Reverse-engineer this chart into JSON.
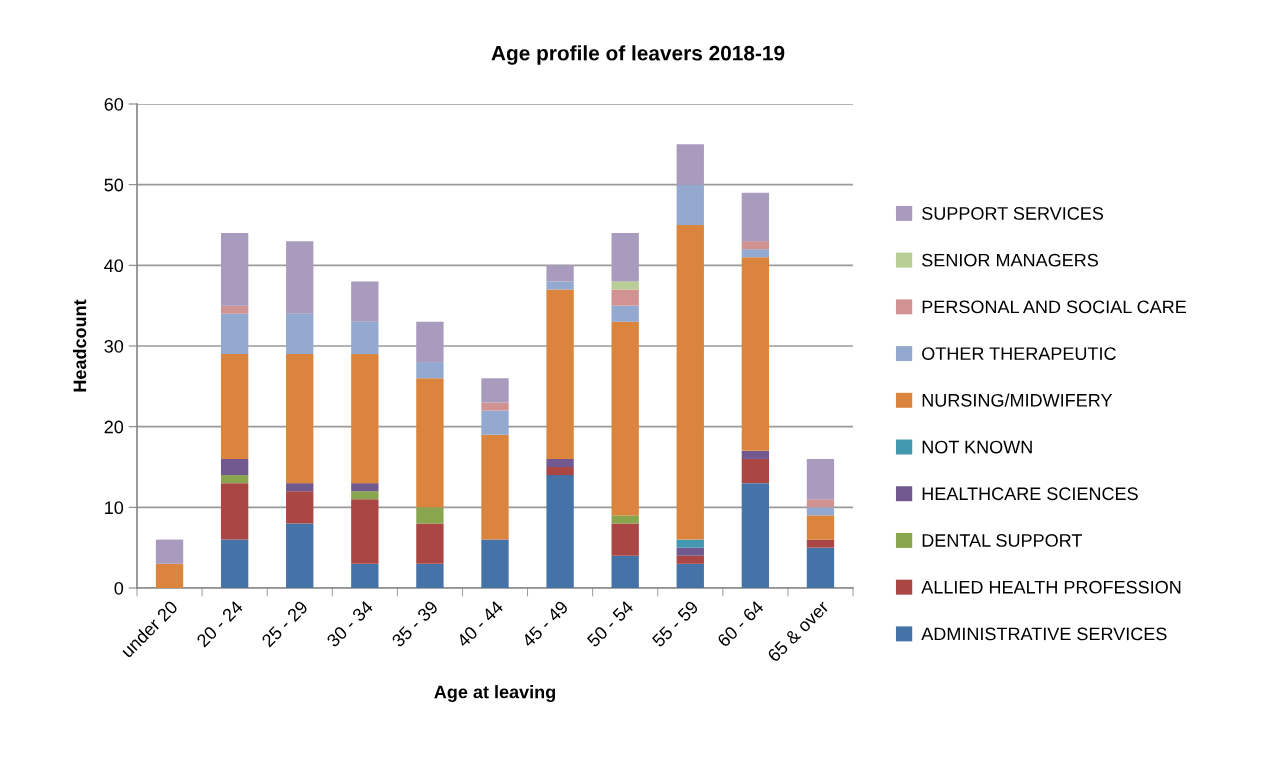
{
  "chart_data": {
    "type": "bar",
    "stacked": true,
    "title": "Age profile of leavers 2018-19",
    "xlabel": "Age at leaving",
    "ylabel": "Headcount",
    "categories": [
      "under 20",
      "20 - 24",
      "25 - 29",
      "30 - 34",
      "35 - 39",
      "40 - 44",
      "45 - 49",
      "50 - 54",
      "55 - 59",
      "60 - 64",
      "65 & over"
    ],
    "series": [
      {
        "name": "ADMINISTRATIVE SERVICES",
        "color": "#4572a7",
        "values": [
          0,
          6,
          8,
          3,
          3,
          6,
          14,
          4,
          3,
          13,
          5
        ]
      },
      {
        "name": "ALLIED HEALTH PROFESSION",
        "color": "#aa4643",
        "values": [
          0,
          7,
          4,
          8,
          5,
          0,
          1,
          4,
          1,
          3,
          1
        ]
      },
      {
        "name": "DENTAL SUPPORT",
        "color": "#89a54e",
        "values": [
          0,
          1,
          0,
          1,
          2,
          0,
          0,
          1,
          0,
          0,
          0
        ]
      },
      {
        "name": "HEALTHCARE SCIENCES",
        "color": "#71588f",
        "values": [
          0,
          2,
          1,
          1,
          0,
          0,
          1,
          0,
          1,
          1,
          0
        ]
      },
      {
        "name": "NOT KNOWN",
        "color": "#4198af",
        "values": [
          0,
          0,
          0,
          0,
          0,
          0,
          0,
          0,
          1,
          0,
          0
        ]
      },
      {
        "name": "NURSING/MIDWIFERY",
        "color": "#db843d",
        "values": [
          3,
          13,
          16,
          16,
          16,
          13,
          21,
          24,
          39,
          24,
          3
        ]
      },
      {
        "name": "OTHER THERAPEUTIC",
        "color": "#93a9cf",
        "values": [
          0,
          5,
          5,
          4,
          2,
          3,
          1,
          2,
          5,
          1,
          1
        ]
      },
      {
        "name": "PERSONAL AND SOCIAL CARE",
        "color": "#d19392",
        "values": [
          0,
          1,
          0,
          0,
          0,
          1,
          0,
          2,
          0,
          1,
          1
        ]
      },
      {
        "name": "SENIOR MANAGERS",
        "color": "#b9cd96",
        "values": [
          0,
          0,
          0,
          0,
          0,
          0,
          0,
          1,
          0,
          0,
          0
        ]
      },
      {
        "name": "SUPPORT SERVICES",
        "color": "#a99bbd",
        "values": [
          3,
          9,
          9,
          5,
          5,
          3,
          2,
          6,
          5,
          6,
          5
        ]
      }
    ],
    "ylim": [
      0,
      60
    ],
    "yticks": [
      0,
      10,
      20,
      30,
      40,
      50,
      60
    ],
    "grid": "y",
    "legend": "right"
  }
}
